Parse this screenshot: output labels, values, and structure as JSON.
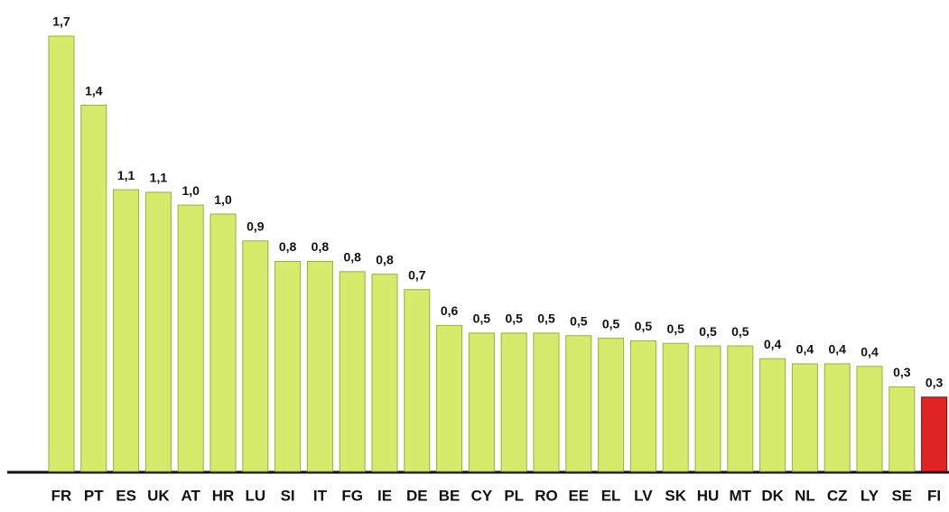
{
  "chart_data": {
    "type": "bar",
    "categories": [
      "FR",
      "PT",
      "ES",
      "UK",
      "AT",
      "HR",
      "LU",
      "SI",
      "IT",
      "FG",
      "IE",
      "DE",
      "BE",
      "CY",
      "PL",
      "RO",
      "EE",
      "EL",
      "LV",
      "SK",
      "HU",
      "MT",
      "DK",
      "NL",
      "CZ",
      "LY",
      "SE",
      "FI"
    ],
    "values": [
      1.7,
      1.43,
      1.1,
      1.09,
      1.04,
      1.005,
      0.9,
      0.82,
      0.82,
      0.78,
      0.77,
      0.71,
      0.57,
      0.54,
      0.54,
      0.54,
      0.53,
      0.52,
      0.51,
      0.5,
      0.49,
      0.49,
      0.44,
      0.42,
      0.42,
      0.41,
      0.33,
      0.29
    ],
    "value_labels": [
      "1,7",
      "1,4",
      "1,1",
      "1,1",
      "1,0",
      "1,0",
      "0,9",
      "0,8",
      "0,8",
      "0,8",
      "0,8",
      "0,7",
      "0,6",
      "0,5",
      "0,5",
      "0,5",
      "0,5",
      "0,5",
      "0,5",
      "0,5",
      "0,5",
      "0,5",
      "0,4",
      "0,4",
      "0,4",
      "0,4",
      "0,3",
      "0,3"
    ],
    "colors": [
      "#d6ea6c",
      "#d6ea6c",
      "#d6ea6c",
      "#d6ea6c",
      "#d6ea6c",
      "#d6ea6c",
      "#d6ea6c",
      "#d6ea6c",
      "#d6ea6c",
      "#d6ea6c",
      "#d6ea6c",
      "#d6ea6c",
      "#d6ea6c",
      "#d6ea6c",
      "#d6ea6c",
      "#d6ea6c",
      "#d6ea6c",
      "#d6ea6c",
      "#d6ea6c",
      "#d6ea6c",
      "#d6ea6c",
      "#d6ea6c",
      "#d6ea6c",
      "#d6ea6c",
      "#d6ea6c",
      "#d6ea6c",
      "#d6ea6c",
      "#e02424"
    ]
  }
}
